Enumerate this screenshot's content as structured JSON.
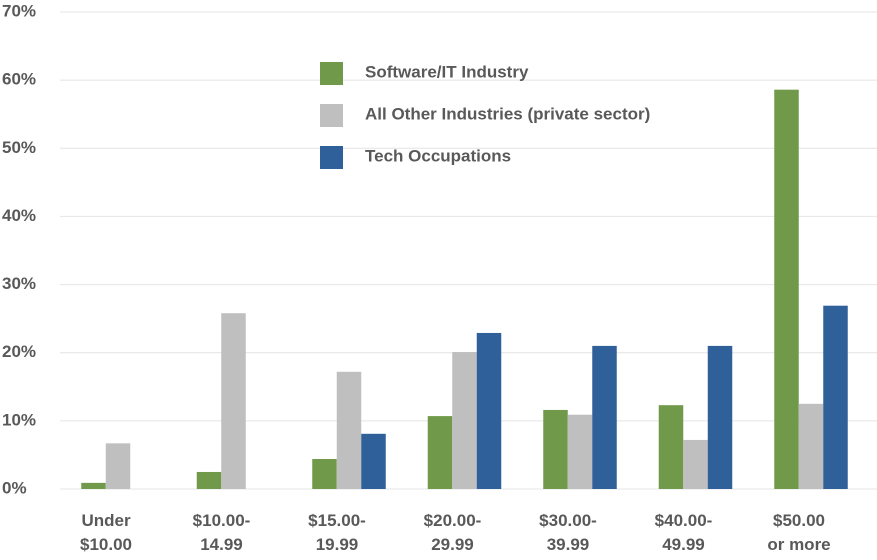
{
  "chart_data": {
    "type": "bar",
    "categories": [
      "Under\n$10.00",
      "$10.00-\n14.99",
      "$15.00-\n19.99",
      "$20.00-\n29.99",
      "$30.00-\n39.99",
      "$40.00-\n49.99",
      "$50.00\nor more"
    ],
    "series": [
      {
        "name": "Software/IT Industry",
        "color": "#71994a",
        "values": [
          0.9,
          2.5,
          4.4,
          10.7,
          11.6,
          12.3,
          58.6
        ]
      },
      {
        "name": "All Other Industries (private sector)",
        "color": "#bfbfbf",
        "values": [
          6.7,
          25.8,
          17.2,
          20.1,
          10.9,
          7.2,
          12.5
        ]
      },
      {
        "name": "Tech Occupations",
        "color": "#30609a",
        "values": [
          null,
          null,
          8.1,
          22.9,
          21.0,
          21.0,
          26.9
        ]
      }
    ],
    "ylim": [
      0,
      70
    ],
    "yticks": [
      {
        "value": 0,
        "label": "0%"
      },
      {
        "value": 10,
        "label": "10%"
      },
      {
        "value": 20,
        "label": "20%"
      },
      {
        "value": 30,
        "label": "30%"
      },
      {
        "value": 40,
        "label": "40%"
      },
      {
        "value": 50,
        "label": "50%"
      },
      {
        "value": 60,
        "label": "60%"
      },
      {
        "value": 70,
        "label": "70%"
      }
    ],
    "grid": true,
    "legend": "top"
  }
}
